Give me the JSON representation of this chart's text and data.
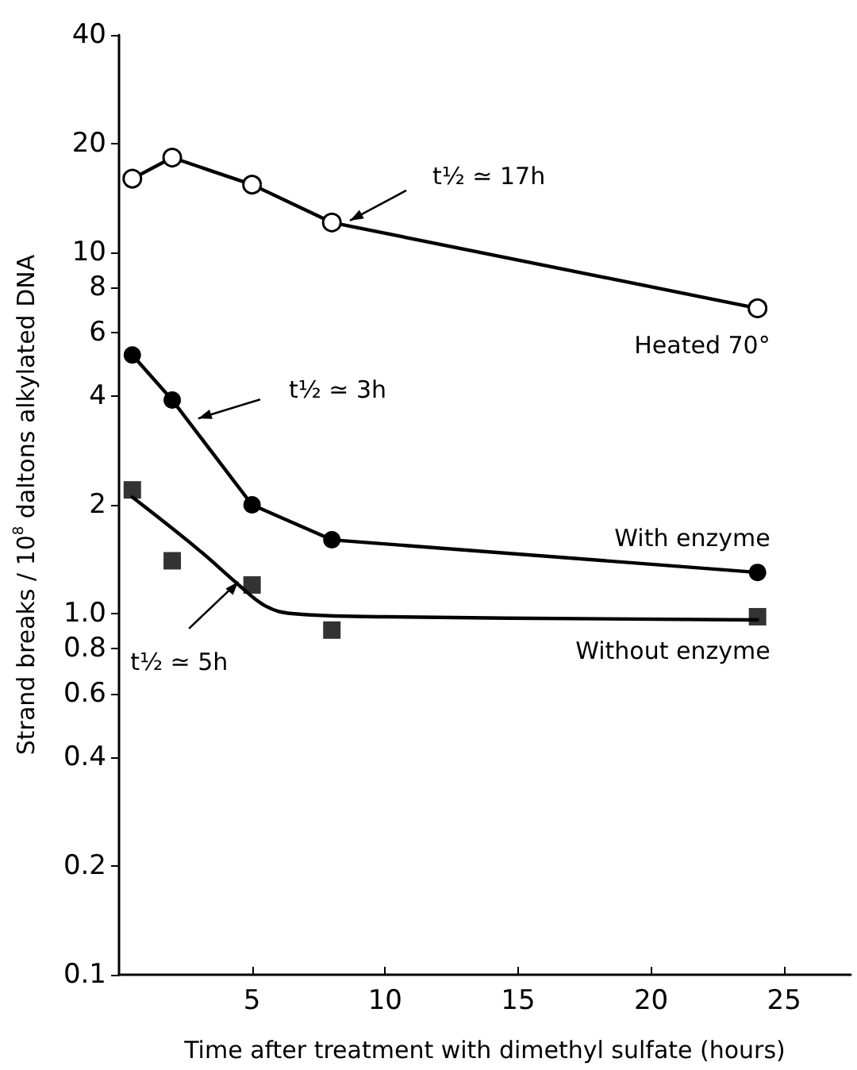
{
  "chart_data": {
    "type": "line",
    "xlabel": "Time after treatment with dimethyl sulfate (hours)",
    "ylabel": "Strand breaks / 10$^{8}$ daltons alkylated DNA",
    "log": "y",
    "xlim": [
      0,
      27.5
    ],
    "xticks": [
      5,
      10,
      15,
      20,
      25
    ],
    "ylim": [
      0.1,
      40
    ],
    "yticks": [
      0.1,
      0.2,
      0.4,
      0.6,
      0.8,
      {
        "value": 1,
        "label": "1.0"
      },
      2,
      4,
      6,
      8,
      10,
      20,
      40
    ],
    "grid": false,
    "legend": false,
    "line_style": "solid",
    "series": [
      {
        "name": "Heated 70°",
        "color": "#000000",
        "marker": "circle",
        "colors": [
          "#ffffff",
          "#ffffff",
          "#ffffff",
          "#ffffff",
          "#ffffff"
        ],
        "x": [
          0.5,
          2,
          5,
          8,
          24
        ],
        "values": [
          16,
          18.3,
          15.4,
          12.1,
          7
        ]
      },
      {
        "name": "With enzyme",
        "color": "#000000",
        "marker": "circle",
        "x": [
          0.5,
          2,
          5,
          8,
          24
        ],
        "values": [
          5.2,
          3.9,
          2,
          1.6,
          1.3
        ]
      },
      {
        "name": "Without enzyme",
        "type": "scatter",
        "color": "#000000",
        "marker": "square",
        "x": [
          0.5,
          2,
          5,
          8,
          24
        ],
        "values": [
          2.2,
          1.4,
          1.2,
          0.9,
          0.98
        ]
      },
      {
        "type": "line",
        "color": "#000000",
        "marker": "none",
        "x": [
          0.5,
          3,
          4.5,
          5.5,
          6.5,
          10,
          24
        ],
        "values": [
          2.1,
          1.5,
          1.2,
          1.05,
          1,
          0.98,
          0.96
        ]
      }
    ],
    "annotations": [
      {
        "text": "t½ ≃ 17h",
        "x": 8.5,
        "y": 12
      },
      {
        "text": "t½ ≃ 3h",
        "x": 2.8,
        "y": 3.4
      },
      {
        "text": "t½ ≃ 5h",
        "x": 4.3,
        "y": 1.25
      }
    ]
  }
}
